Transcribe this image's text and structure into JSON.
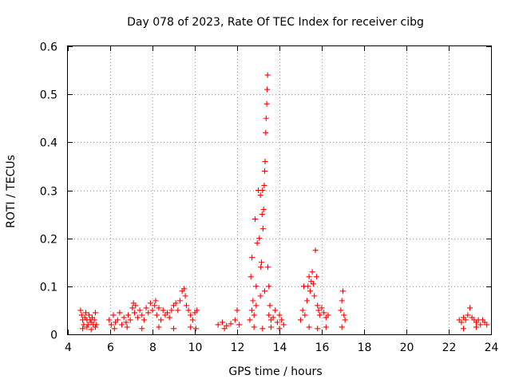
{
  "chart_data": {
    "type": "scatter",
    "title": "Day 078 of 2023, Rate Of TEC Index for receiver cibg",
    "xlabel": "GPS time / hours",
    "ylabel": "ROTI / TECUs",
    "xlim": [
      4,
      24
    ],
    "ylim": [
      0,
      0.6
    ],
    "xticks": [
      "4",
      "6",
      "8",
      "10",
      "12",
      "14",
      "16",
      "18",
      "20",
      "22",
      "24"
    ],
    "yticks": [
      "0",
      "0.1",
      "0.2",
      "0.3",
      "0.4",
      "0.5",
      "0.6"
    ],
    "grid": true,
    "marker": "+",
    "color": "#ff0000",
    "series": [
      {
        "name": "ROTI",
        "points": [
          [
            4.6,
            0.05
          ],
          [
            4.65,
            0.04
          ],
          [
            4.7,
            0.03
          ],
          [
            4.75,
            0.02
          ],
          [
            4.8,
            0.035
          ],
          [
            4.85,
            0.045
          ],
          [
            4.9,
            0.03
          ],
          [
            4.95,
            0.02
          ],
          [
            5.0,
            0.04
          ],
          [
            5.05,
            0.03
          ],
          [
            5.1,
            0.025
          ],
          [
            5.15,
            0.035
          ],
          [
            5.2,
            0.02
          ],
          [
            5.25,
            0.03
          ],
          [
            5.3,
            0.045
          ],
          [
            5.35,
            0.02
          ],
          [
            4.7,
            0.012
          ],
          [
            4.9,
            0.015
          ],
          [
            5.1,
            0.01
          ],
          [
            5.3,
            0.015
          ],
          [
            5.95,
            0.03
          ],
          [
            6.05,
            0.02
          ],
          [
            6.15,
            0.04
          ],
          [
            6.25,
            0.025
          ],
          [
            6.35,
            0.03
          ],
          [
            6.45,
            0.045
          ],
          [
            6.55,
            0.02
          ],
          [
            6.65,
            0.035
          ],
          [
            6.75,
            0.025
          ],
          [
            6.85,
            0.04
          ],
          [
            6.95,
            0.03
          ],
          [
            7.05,
            0.055
          ],
          [
            7.15,
            0.045
          ],
          [
            7.2,
            0.06
          ],
          [
            7.3,
            0.035
          ],
          [
            7.4,
            0.05
          ],
          [
            7.5,
            0.04
          ],
          [
            7.6,
            0.03
          ],
          [
            7.7,
            0.055
          ],
          [
            7.8,
            0.045
          ],
          [
            7.9,
            0.065
          ],
          [
            8.0,
            0.05
          ],
          [
            8.1,
            0.06
          ],
          [
            8.2,
            0.04
          ],
          [
            8.3,
            0.055
          ],
          [
            8.4,
            0.03
          ],
          [
            8.5,
            0.05
          ],
          [
            8.6,
            0.04
          ],
          [
            8.7,
            0.045
          ],
          [
            8.8,
            0.035
          ],
          [
            8.9,
            0.05
          ],
          [
            9.0,
            0.06
          ],
          [
            9.1,
            0.065
          ],
          [
            9.2,
            0.05
          ],
          [
            9.3,
            0.07
          ],
          [
            9.4,
            0.09
          ],
          [
            9.5,
            0.095
          ],
          [
            9.55,
            0.08
          ],
          [
            9.6,
            0.06
          ],
          [
            9.7,
            0.05
          ],
          [
            9.8,
            0.04
          ],
          [
            9.9,
            0.03
          ],
          [
            10.0,
            0.045
          ],
          [
            10.1,
            0.05
          ],
          [
            6.2,
            0.012
          ],
          [
            6.8,
            0.015
          ],
          [
            7.5,
            0.012
          ],
          [
            8.3,
            0.015
          ],
          [
            9.0,
            0.012
          ],
          [
            9.8,
            0.015
          ],
          [
            10.05,
            0.012
          ],
          [
            7.1,
            0.065
          ],
          [
            8.15,
            0.07
          ],
          [
            11.1,
            0.02
          ],
          [
            11.3,
            0.025
          ],
          [
            11.5,
            0.018
          ],
          [
            11.7,
            0.022
          ],
          [
            11.9,
            0.03
          ],
          [
            12.0,
            0.05
          ],
          [
            12.1,
            0.02
          ],
          [
            11.4,
            0.012
          ],
          [
            12.6,
            0.03
          ],
          [
            12.65,
            0.12
          ],
          [
            12.7,
            0.16
          ],
          [
            12.75,
            0.07
          ],
          [
            12.8,
            0.04
          ],
          [
            12.85,
            0.24
          ],
          [
            12.9,
            0.1
          ],
          [
            12.95,
            0.19
          ],
          [
            13.0,
            0.3
          ],
          [
            13.05,
            0.2
          ],
          [
            13.1,
            0.29
          ],
          [
            13.12,
            0.14
          ],
          [
            13.15,
            0.15
          ],
          [
            13.18,
            0.25
          ],
          [
            13.2,
            0.3
          ],
          [
            13.22,
            0.22
          ],
          [
            13.25,
            0.26
          ],
          [
            13.28,
            0.31
          ],
          [
            13.3,
            0.34
          ],
          [
            13.32,
            0.36
          ],
          [
            13.35,
            0.42
          ],
          [
            13.37,
            0.45
          ],
          [
            13.4,
            0.48
          ],
          [
            13.42,
            0.51
          ],
          [
            13.44,
            0.54
          ],
          [
            13.45,
            0.14
          ],
          [
            13.5,
            0.1
          ],
          [
            13.55,
            0.06
          ],
          [
            12.7,
            0.05
          ],
          [
            12.9,
            0.06
          ],
          [
            13.1,
            0.08
          ],
          [
            13.3,
            0.09
          ],
          [
            13.5,
            0.04
          ],
          [
            13.6,
            0.03
          ],
          [
            13.7,
            0.035
          ],
          [
            13.8,
            0.05
          ],
          [
            13.9,
            0.025
          ],
          [
            14.0,
            0.04
          ],
          [
            14.1,
            0.03
          ],
          [
            14.2,
            0.02
          ],
          [
            12.8,
            0.015
          ],
          [
            13.2,
            0.012
          ],
          [
            13.6,
            0.015
          ],
          [
            14.0,
            0.012
          ],
          [
            15.0,
            0.03
          ],
          [
            15.1,
            0.05
          ],
          [
            15.2,
            0.04
          ],
          [
            15.3,
            0.07
          ],
          [
            15.35,
            0.1
          ],
          [
            15.4,
            0.12
          ],
          [
            15.45,
            0.09
          ],
          [
            15.5,
            0.11
          ],
          [
            15.55,
            0.13
          ],
          [
            15.6,
            0.105
          ],
          [
            15.65,
            0.08
          ],
          [
            15.7,
            0.175
          ],
          [
            15.75,
            0.12
          ],
          [
            15.8,
            0.06
          ],
          [
            15.85,
            0.05
          ],
          [
            15.9,
            0.04
          ],
          [
            16.0,
            0.055
          ],
          [
            16.1,
            0.045
          ],
          [
            16.2,
            0.035
          ],
          [
            16.3,
            0.04
          ],
          [
            15.15,
            0.1
          ],
          [
            15.4,
            0.015
          ],
          [
            15.8,
            0.012
          ],
          [
            16.2,
            0.015
          ],
          [
            16.9,
            0.05
          ],
          [
            16.95,
            0.07
          ],
          [
            17.0,
            0.09
          ],
          [
            17.05,
            0.04
          ],
          [
            17.1,
            0.03
          ],
          [
            16.95,
            0.015
          ],
          [
            22.5,
            0.03
          ],
          [
            22.6,
            0.025
          ],
          [
            22.7,
            0.035
          ],
          [
            22.8,
            0.03
          ],
          [
            22.9,
            0.04
          ],
          [
            23.0,
            0.055
          ],
          [
            23.1,
            0.035
          ],
          [
            23.2,
            0.03
          ],
          [
            23.3,
            0.025
          ],
          [
            23.4,
            0.03
          ],
          [
            23.5,
            0.02
          ],
          [
            23.6,
            0.03
          ],
          [
            23.7,
            0.025
          ],
          [
            23.8,
            0.02
          ],
          [
            22.7,
            0.012
          ],
          [
            23.3,
            0.015
          ]
        ]
      }
    ]
  }
}
